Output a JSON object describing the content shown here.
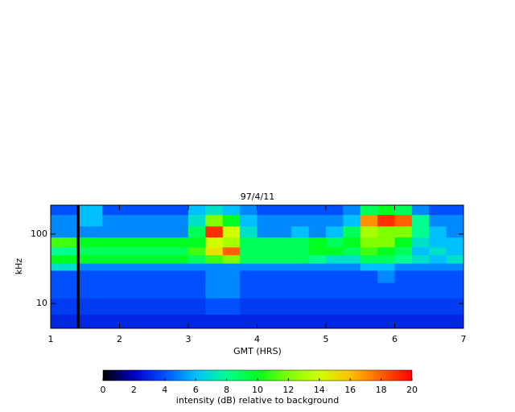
{
  "chart_data": {
    "type": "heatmap",
    "title": "97/4/11",
    "x_label": "GMT (HRS)",
    "y_label": "kHz",
    "x": [
      1,
      1.38,
      1.42,
      1.75,
      2,
      2.25,
      2.5,
      2.75,
      3,
      3.25,
      3.5,
      3.75,
      4,
      4.25,
      4.5,
      4.75,
      5,
      5.25,
      5.5,
      5.75,
      6,
      6.25,
      6.5,
      6.75,
      7
    ],
    "y": [
      4.4,
      7,
      12,
      20,
      30,
      38,
      50,
      65,
      90,
      130,
      190,
      260
    ],
    "z": [
      [
        3,
        0,
        3,
        3,
        3,
        3,
        3,
        3,
        3,
        3,
        3,
        3,
        3,
        3,
        3,
        3,
        3,
        3,
        3,
        3,
        3,
        3,
        3,
        3
      ],
      [
        3.5,
        0,
        3.5,
        3.5,
        3.5,
        3.5,
        3.5,
        3.5,
        3.5,
        4,
        4,
        3.5,
        3.5,
        3.5,
        3.5,
        3.5,
        3.5,
        3.5,
        3.5,
        3.5,
        3.5,
        3.5,
        3.5,
        3.5
      ],
      [
        4,
        0,
        4,
        4,
        4,
        4,
        4,
        4,
        4,
        5,
        5,
        4,
        4,
        4,
        4,
        4,
        4,
        4,
        4,
        4,
        4,
        4,
        4,
        4
      ],
      [
        4,
        0,
        4,
        4,
        4,
        4,
        4,
        4,
        4,
        5,
        5,
        4,
        4,
        4,
        4,
        4,
        4,
        4,
        4,
        5,
        4,
        4,
        4,
        4
      ],
      [
        7,
        0,
        5,
        5,
        5,
        5,
        5,
        5,
        5,
        5,
        5,
        5,
        5,
        5,
        5,
        5,
        5,
        5,
        6,
        6,
        5,
        5,
        5,
        5
      ],
      [
        10,
        0,
        10,
        10,
        10,
        10,
        10,
        10,
        9,
        11,
        12,
        9,
        9,
        9,
        9,
        8,
        7,
        7,
        9,
        9,
        8,
        7,
        6,
        7
      ],
      [
        8,
        0,
        9,
        9,
        9,
        9,
        9,
        9,
        11,
        15,
        18,
        9,
        9,
        9,
        9,
        10,
        10,
        9,
        11,
        10,
        9,
        6,
        7,
        6
      ],
      [
        11,
        0,
        10,
        10,
        10,
        10,
        10,
        10,
        10,
        14,
        13,
        9,
        9,
        9,
        9,
        10,
        9,
        10,
        12,
        12,
        10,
        7,
        6,
        6
      ],
      [
        5,
        0,
        5,
        5,
        5,
        5,
        5,
        5,
        9,
        19,
        14,
        7,
        5,
        5,
        6,
        5,
        6,
        9,
        13,
        12,
        12,
        8,
        6,
        5
      ],
      [
        5,
        0,
        6,
        5,
        5,
        5,
        5,
        5,
        7,
        12,
        10,
        6,
        5,
        5,
        5,
        5,
        5,
        6,
        17,
        19,
        18,
        8,
        5,
        5
      ],
      [
        4,
        0,
        6,
        4,
        4,
        4,
        4,
        4,
        6,
        7,
        6,
        5,
        4,
        4,
        4,
        4,
        4,
        5,
        9,
        10,
        9,
        5,
        4,
        4
      ]
    ],
    "xlim": [
      1,
      7
    ],
    "xticks": [
      1,
      2,
      3,
      4,
      5,
      6,
      7
    ],
    "ylim": [
      4.4,
      260
    ],
    "yticks": [
      10,
      100
    ],
    "log_y": true,
    "colorbar_label": "intensity (dB) relative to background",
    "clim": [
      0,
      20
    ],
    "cticks": [
      0,
      2,
      4,
      6,
      8,
      10,
      12,
      14,
      16,
      18,
      20
    ],
    "colorscale": [
      "#000000",
      "#0000c8",
      "#0050ff",
      "#00c0ff",
      "#00ff90",
      "#00ff20",
      "#80ff00",
      "#d0ff00",
      "#ffc000",
      "#ff6000",
      "#ff0000"
    ]
  }
}
